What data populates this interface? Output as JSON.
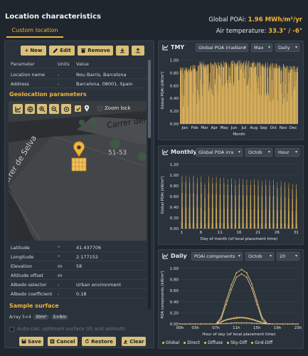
{
  "header": {
    "title": "Location characteristics",
    "poa_label": "Global POAi:",
    "poa_value": "1.96 MWh/m²/yr",
    "air_label": "Air temperature:",
    "air_value": "33.3° / -6°",
    "tab_label": "Custom location"
  },
  "toolbar": {
    "new_label": "New",
    "edit_label": "Edit",
    "remove_label": "Remove"
  },
  "param_table": {
    "headers": [
      "Parameter",
      "Units",
      "Value"
    ],
    "rows": [
      {
        "param": "Location name",
        "units": "-",
        "value": "Nou Barris, Barcelona"
      },
      {
        "param": "Address",
        "units": "-",
        "value": "Barcelona, 08001, Spain"
      }
    ]
  },
  "geolocation": {
    "title": "Geolocation parameters",
    "zoom_lock": "Zoom lock",
    "map_labels": [
      "Carrer del",
      "51-53",
      "Carrer de Selva"
    ],
    "rows": [
      {
        "param": "Latitude",
        "units": "°",
        "value": "41.437706"
      },
      {
        "param": "Longitude",
        "units": "°",
        "value": "2.177152"
      },
      {
        "param": "Elevation",
        "units": "m",
        "value": "58"
      },
      {
        "param": "Altitude offset",
        "units": "m",
        "value": ""
      },
      {
        "param": "Albedo selector",
        "units": "-",
        "value": "Urban environment"
      },
      {
        "param": "Albedo coefficient",
        "units": "-",
        "value": "0.18"
      }
    ]
  },
  "sample": {
    "title": "Sample surface",
    "array_label": "Array 5×4",
    "chip1": "30m²",
    "chip2": "5×6m",
    "autocalc": "Auto-calc optimum surface tilt and azimuth"
  },
  "bottom": {
    "save_label": "Save",
    "cancel_label": "Cancel",
    "restore_label": "Restore",
    "clear_label": "Clear"
  },
  "tmy": {
    "title": "TMY",
    "sel1": "Global POA irradianc",
    "sel2": "Max",
    "sel3": "Daily",
    "ylabel": "Global POAi (kW/m²)",
    "xlabel": "Month"
  },
  "monthly": {
    "title": "Monthly",
    "sel1": "Global POA irra",
    "sel2": "Octob",
    "sel3": "Hour",
    "ylabel": "Global POAi (kW/m²)",
    "xlabel": "Day of month (of local placement time)"
  },
  "daily": {
    "title": "Daily",
    "sel1": "POAi components",
    "sel2": "Octob",
    "sel3": "20",
    "ylabel": "POA components (kW/m²)",
    "xlabel": "Hour of day (of local placement time)",
    "legend": [
      "Global",
      "Direct",
      "Diffuse",
      "Sky-Diff",
      "Gnd-Diff"
    ]
  },
  "chart_data": [
    {
      "type": "bar",
      "title": "TMY",
      "xlabel": "Month",
      "ylabel": "Global POAi (kW/m²)",
      "x_ticks": [
        "Jan",
        "Feb",
        "Mar",
        "Apr",
        "May",
        "Jun",
        "Jul",
        "Aug",
        "Sep",
        "Oct",
        "Nov",
        "Dec"
      ],
      "y_ticks": [
        "0.00",
        "0.20",
        "0.40",
        "0.60",
        "0.80",
        "1.00"
      ],
      "ylim": [
        0,
        1.05
      ],
      "color": "#f0c060",
      "envelope_max": [
        0.9,
        0.93,
        0.99,
        0.99,
        1.0,
        1.0,
        1.0,
        0.99,
        0.98,
        0.96,
        0.94,
        0.92
      ],
      "envelope_min": [
        0.25,
        0.3,
        0.35,
        0.4,
        0.45,
        0.55,
        0.55,
        0.5,
        0.4,
        0.3,
        0.25,
        0.22
      ]
    },
    {
      "type": "bar",
      "title": "Monthly",
      "xlabel": "Day of month (of local placement time)",
      "ylabel": "Global POAi (kW/m²)",
      "x_ticks": [
        "1",
        "6",
        "11",
        "16",
        "21",
        "26",
        "31"
      ],
      "y_ticks": [
        "0.00",
        "0.20",
        "0.40",
        "0.60",
        "0.80",
        "1.00",
        "1.20"
      ],
      "ylim": [
        0,
        1.25
      ],
      "color": "#f0c060",
      "daily_peaks": [
        1.0,
        1.0,
        0.98,
        1.0,
        0.97,
        0.99,
        0.86,
        0.99,
        0.97,
        0.98,
        0.96,
        0.97,
        0.94,
        0.95,
        0.92,
        0.95,
        0.94,
        0.93,
        0.92,
        0.94,
        0.92,
        0.9,
        0.93,
        0.91,
        0.92,
        0.88,
        0.9,
        0.88,
        0.86,
        0.84,
        0.84
      ]
    },
    {
      "type": "line",
      "title": "Daily",
      "xlabel": "Hour of day (of local placement time)",
      "ylabel": "POA components (kW/m²)",
      "x": [
        0,
        1,
        2,
        3,
        4,
        5,
        6,
        7,
        8,
        9,
        10,
        11,
        12,
        13,
        14,
        15,
        16,
        17,
        18,
        19,
        20,
        21,
        22,
        23
      ],
      "x_ticks": [
        "00h",
        "03h",
        "07h",
        "11h",
        "15h",
        "19h",
        "23h"
      ],
      "y_ticks": [
        "0.00",
        "0.20",
        "0.40",
        "0.60",
        "0.80",
        "1.00"
      ],
      "ylim": [
        0,
        1.05
      ],
      "series": [
        {
          "name": "Global",
          "values": [
            0,
            0,
            0,
            0,
            0,
            0,
            0,
            0,
            0.12,
            0.42,
            0.7,
            0.92,
            0.98,
            0.92,
            0.72,
            0.42,
            0.12,
            0.01,
            0,
            0,
            0,
            0,
            0,
            0
          ]
        },
        {
          "name": "Direct",
          "values": [
            0,
            0,
            0,
            0,
            0,
            0,
            0,
            0,
            0.08,
            0.35,
            0.62,
            0.84,
            0.9,
            0.84,
            0.64,
            0.35,
            0.08,
            0,
            0,
            0,
            0,
            0,
            0,
            0
          ]
        },
        {
          "name": "Diffuse",
          "values": [
            0,
            0,
            0,
            0,
            0,
            0,
            0,
            0,
            0.04,
            0.08,
            0.1,
            0.12,
            0.12,
            0.11,
            0.09,
            0.06,
            0.03,
            0.01,
            0,
            0,
            0,
            0,
            0,
            0
          ]
        },
        {
          "name": "Sky-Diff",
          "values": [
            0,
            0,
            0,
            0,
            0,
            0,
            0,
            0,
            0.03,
            0.07,
            0.09,
            0.1,
            0.11,
            0.1,
            0.08,
            0.05,
            0.02,
            0,
            0,
            0,
            0,
            0,
            0,
            0
          ]
        },
        {
          "name": "Gnd-Diff",
          "values": [
            0,
            0,
            0,
            0,
            0,
            0,
            0,
            0,
            0.005,
            0.01,
            0.015,
            0.02,
            0.02,
            0.02,
            0.015,
            0.01,
            0.005,
            0,
            0,
            0,
            0,
            0,
            0,
            0
          ]
        }
      ]
    }
  ]
}
